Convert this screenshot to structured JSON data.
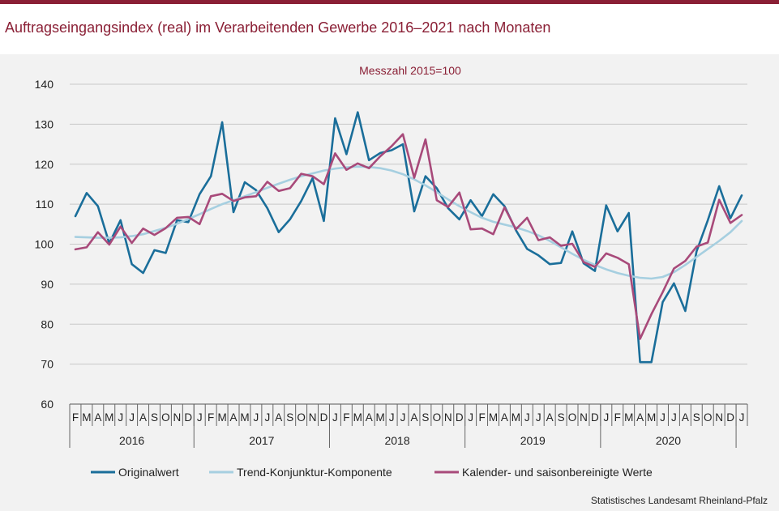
{
  "header": {
    "title": "Auftragseingangsindex (real) im Verarbeitenden Gewerbe 2016–2021 nach Monaten"
  },
  "footer": {
    "source": "Statistisches Landesamt Rheinland-Pfalz"
  },
  "colors": {
    "brand": "#8a1f35",
    "original": "#1a6e9a",
    "trend": "#a6cfe0",
    "seasonal": "#a84a7a"
  },
  "chart_data": {
    "type": "line",
    "subtitle": "Messzahl 2015=100",
    "ylim": [
      60,
      140
    ],
    "yticks": [
      60,
      70,
      80,
      90,
      100,
      110,
      120,
      130,
      140
    ],
    "grid": true,
    "legend_position": "bottom",
    "categories": [
      "F",
      "M",
      "A",
      "M",
      "J",
      "J",
      "A",
      "S",
      "O",
      "N",
      "D",
      "J",
      "F",
      "M",
      "A",
      "M",
      "J",
      "J",
      "A",
      "S",
      "O",
      "N",
      "D",
      "J",
      "F",
      "M",
      "A",
      "M",
      "J",
      "J",
      "A",
      "S",
      "O",
      "N",
      "D",
      "J",
      "F",
      "M",
      "A",
      "M",
      "J",
      "J",
      "A",
      "S",
      "O",
      "N",
      "D",
      "J",
      "F",
      "M",
      "A",
      "M",
      "J",
      "J",
      "A",
      "S",
      "O",
      "N",
      "D",
      "J"
    ],
    "year_groups": [
      {
        "label": "2016",
        "count": 11
      },
      {
        "label": "2017",
        "count": 12
      },
      {
        "label": "2018",
        "count": 12
      },
      {
        "label": "2019",
        "count": 12
      },
      {
        "label": "2020",
        "count": 12
      }
    ],
    "series": [
      {
        "name": "Originalwert",
        "color": "#1a6e9a",
        "width": 2.6,
        "values": [
          107,
          112.8,
          109.5,
          100.2,
          106,
          95,
          92.8,
          98.5,
          97.8,
          106,
          105.5,
          112.5,
          117,
          130.5,
          108,
          115.5,
          113.5,
          109,
          103,
          106.2,
          110.8,
          116.5,
          105.8,
          131.5,
          122.5,
          133,
          121,
          122.8,
          123.5,
          125,
          108.2,
          117,
          114,
          109,
          106.2,
          111,
          107,
          112.5,
          109.5,
          103.5,
          98.8,
          97.2,
          95,
          95.3,
          103.2,
          95.2,
          93.3,
          109.7,
          103.2,
          107.8,
          70.5,
          70.5,
          85.5,
          90.2,
          83.3,
          98.2,
          106,
          114.5,
          106.5,
          112.2
        ]
      },
      {
        "name": "Trend-Konjunktur-Komponente",
        "color": "#a6cfe0",
        "width": 2.6,
        "values": [
          101.8,
          101.7,
          101.6,
          101.6,
          101.7,
          102,
          102.5,
          103.3,
          104.1,
          105.1,
          106.3,
          107.5,
          108.8,
          110,
          111,
          112,
          113,
          114.1,
          115.1,
          116.1,
          117,
          117.7,
          118.4,
          118.9,
          119.2,
          119.4,
          119.3,
          119,
          118.4,
          117.5,
          116.2,
          114.7,
          113,
          111.2,
          109.5,
          108,
          106.6,
          105.6,
          104.9,
          104.2,
          103.3,
          102.2,
          100.8,
          99.2,
          97.6,
          96.1,
          94.8,
          93.7,
          92.8,
          92.1,
          91.6,
          91.4,
          91.8,
          93,
          94.8,
          96.8,
          98.8,
          100.8,
          103,
          105.8
        ]
      },
      {
        "name": "Kalender- und saisonbereinigte Werte",
        "color": "#a84a7a",
        "width": 2.6,
        "values": [
          98.7,
          99.2,
          103,
          99.9,
          104.4,
          100.3,
          103.9,
          102.3,
          104,
          106.6,
          106.8,
          105,
          112,
          112.6,
          110.8,
          111.7,
          112,
          115.6,
          113.3,
          114,
          117.6,
          117,
          115,
          122.7,
          118.6,
          120.2,
          119,
          122,
          124.5,
          127.5,
          116.6,
          126.2,
          111,
          109.3,
          112.9,
          103.7,
          103.9,
          102.5,
          109.2,
          103.7,
          106.6,
          101,
          101.7,
          99.6,
          100.1,
          95.5,
          94.3,
          97.7,
          96.6,
          95,
          76.3,
          82.5,
          88,
          93.9,
          95.8,
          99.4,
          100.4,
          111.1,
          105.3,
          107.3
        ]
      }
    ]
  }
}
